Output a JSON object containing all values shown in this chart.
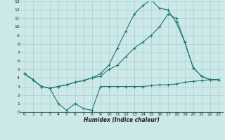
{
  "xlabel": "Humidex (Indice chaleur)",
  "bg_color": "#cce8e8",
  "grid_color": "#aacfcf",
  "line_color": "#1a7a6e",
  "xlim": [
    -0.5,
    23.5
  ],
  "ylim": [
    0,
    13
  ],
  "xticks": [
    0,
    1,
    2,
    3,
    4,
    5,
    6,
    7,
    8,
    9,
    10,
    11,
    12,
    13,
    14,
    15,
    16,
    17,
    18,
    19,
    20,
    21,
    22,
    23
  ],
  "yticks": [
    0,
    1,
    2,
    3,
    4,
    5,
    6,
    7,
    8,
    9,
    10,
    11,
    12,
    13
  ],
  "line1_x": [
    0,
    1,
    2,
    3,
    4,
    5,
    6,
    7,
    8,
    9,
    10,
    11,
    12,
    13,
    14,
    15,
    16,
    17,
    18,
    19,
    20,
    21,
    22,
    23
  ],
  "line1_y": [
    4.5,
    3.8,
    3.0,
    2.8,
    1.0,
    0.2,
    1.0,
    0.4,
    0.2,
    3.0,
    3.0,
    3.0,
    3.0,
    3.0,
    3.0,
    3.1,
    3.2,
    3.2,
    3.3,
    3.5,
    3.6,
    3.7,
    3.8,
    3.8
  ],
  "line2_x": [
    0,
    1,
    2,
    3,
    4,
    5,
    6,
    7,
    8,
    9,
    10,
    11,
    12,
    13,
    14,
    15,
    16,
    17,
    18,
    19,
    20,
    21,
    22,
    23
  ],
  "line2_y": [
    4.5,
    3.8,
    3.0,
    2.8,
    3.0,
    3.2,
    3.5,
    3.7,
    4.0,
    4.2,
    5.0,
    5.5,
    6.5,
    7.5,
    8.2,
    9.0,
    10.0,
    11.5,
    11.0,
    8.2,
    5.2,
    4.2,
    3.8,
    3.8
  ],
  "line3_x": [
    0,
    1,
    2,
    3,
    4,
    5,
    6,
    7,
    8,
    9,
    10,
    11,
    12,
    13,
    14,
    15,
    16,
    17,
    18,
    19,
    20,
    21,
    22,
    23
  ],
  "line3_y": [
    4.5,
    3.8,
    3.0,
    2.8,
    3.0,
    3.2,
    3.5,
    3.7,
    4.0,
    4.5,
    5.5,
    7.5,
    9.5,
    11.5,
    12.5,
    13.2,
    12.2,
    12.0,
    10.5,
    8.2,
    5.2,
    4.2,
    3.8,
    3.8
  ]
}
